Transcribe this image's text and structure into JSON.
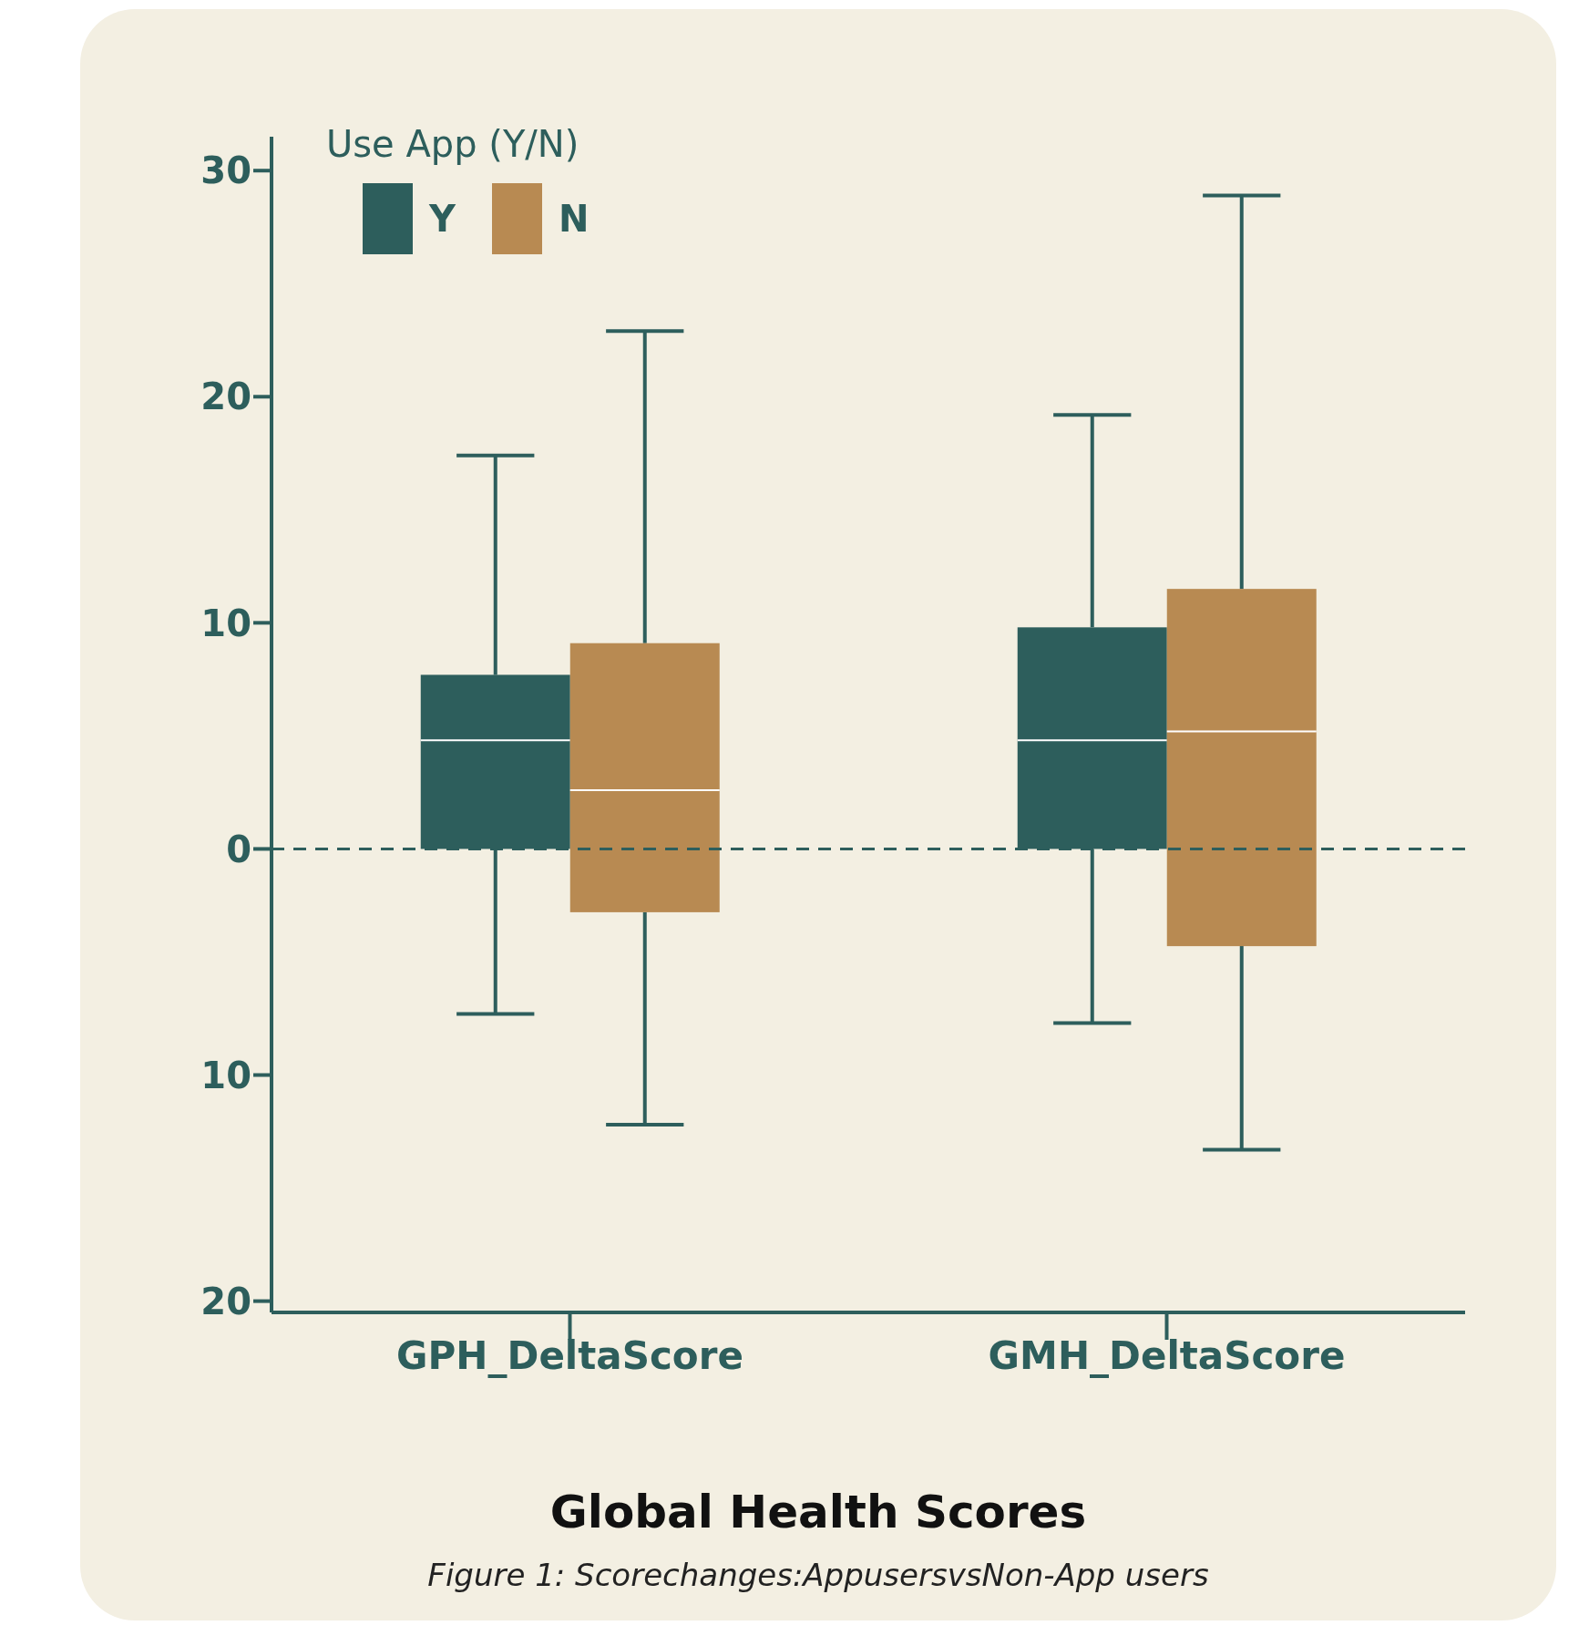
{
  "chart_data": {
    "type": "box",
    "title": "Global Health Scores",
    "annotations": [
      "Figure 1: Scorechanges:AppusersvsNon-App users"
    ],
    "legend_title": "Use App (Y/N)",
    "legend": "top left",
    "categories": [
      "GPH_DeltaScore",
      "GMH_DeltaScore"
    ],
    "series": [
      {
        "name": "Y",
        "color": "#2d5e5c",
        "boxes": [
          {
            "low": -7.3,
            "q1": 0,
            "median": 4.8,
            "q3": 7.7,
            "high": 17.4
          },
          {
            "low": -7.7,
            "q1": 0,
            "median": 4.8,
            "q3": 9.8,
            "high": 19.2
          }
        ]
      },
      {
        "name": "N",
        "color": "#b88a52",
        "boxes": [
          {
            "low": -12.2,
            "q1": -2.8,
            "median": 2.6,
            "q3": 9.1,
            "high": 22.9
          },
          {
            "low": -13.3,
            "q1": -4.3,
            "median": 5.2,
            "q3": 11.5,
            "high": 28.9
          }
        ]
      }
    ],
    "ylim": [
      -20.5,
      31.5
    ],
    "yticks": [
      {
        "value": -20,
        "label": "20"
      },
      {
        "value": -10,
        "label": "10"
      },
      0,
      10,
      20,
      30
    ],
    "ref_lines": [
      {
        "axis": "y",
        "value": 0,
        "line_style": "dashed",
        "color": "#2d5e5c"
      }
    ]
  }
}
